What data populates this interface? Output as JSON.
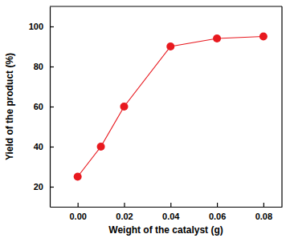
{
  "chart_data": {
    "type": "line",
    "x_label": "Weight of the catalyst (g)",
    "y_label": "Yield of the product (%)",
    "x": [
      0,
      0.01,
      0.02,
      0.04,
      0.06,
      0.08
    ],
    "values": [
      25,
      40,
      60,
      90,
      94,
      95
    ],
    "color": "#e8191f",
    "marker": "circle",
    "xlim": [
      -0.012,
      0.088
    ],
    "xticks": [
      {
        "value": 0,
        "label": "0.00"
      },
      {
        "value": 0.02,
        "label": "0.02"
      },
      {
        "value": 0.04,
        "label": "0.04"
      },
      {
        "value": 0.06,
        "label": "0.06"
      },
      {
        "value": 0.08,
        "label": "0.08"
      }
    ],
    "ylim": [
      10,
      110
    ],
    "yticks": [
      20,
      40,
      60,
      80,
      100
    ],
    "grid": false
  }
}
